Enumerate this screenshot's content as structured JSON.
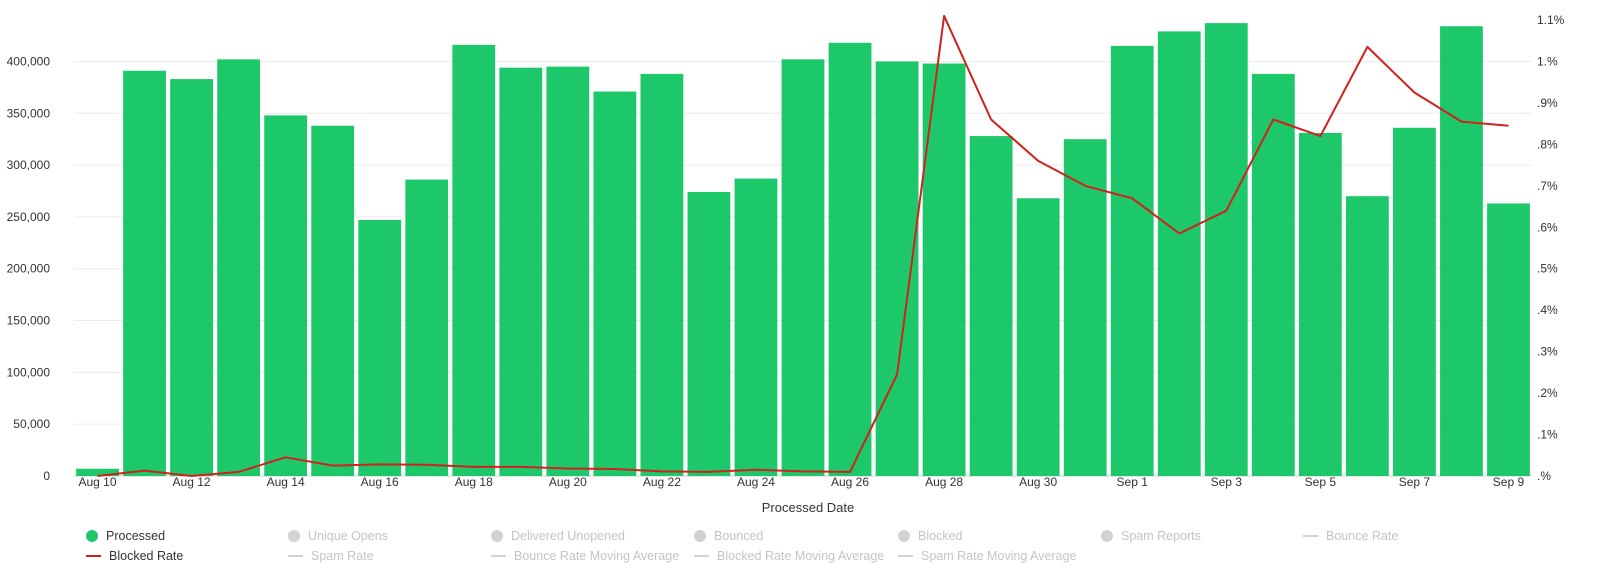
{
  "chart_data": {
    "type": "bar",
    "xlabel": "Processed Date",
    "categories": [
      "Aug 10",
      "Aug 11",
      "Aug 12",
      "Aug 13",
      "Aug 14",
      "Aug 15",
      "Aug 16",
      "Aug 17",
      "Aug 18",
      "Aug 19",
      "Aug 20",
      "Aug 21",
      "Aug 22",
      "Aug 23",
      "Aug 24",
      "Aug 25",
      "Aug 26",
      "Aug 27",
      "Aug 28",
      "Aug 29",
      "Aug 30",
      "Aug 31",
      "Sep 1",
      "Sep 2",
      "Sep 3",
      "Sep 4",
      "Sep 5",
      "Sep 6",
      "Sep 7",
      "Sep 8",
      "Sep 9"
    ],
    "x_tick_labels": [
      "Aug 10",
      "Aug 12",
      "Aug 14",
      "Aug 16",
      "Aug 18",
      "Aug 20",
      "Aug 22",
      "Aug 24",
      "Aug 26",
      "Aug 28",
      "Aug 30",
      "Sep 1",
      "Sep 3",
      "Sep 5",
      "Sep 7",
      "Sep 9"
    ],
    "y_left": {
      "ylim": [
        0,
        440000
      ],
      "ticks": [
        0,
        50000,
        100000,
        150000,
        200000,
        250000,
        300000,
        350000,
        400000
      ],
      "tick_labels": [
        "0",
        "50,000",
        "100,000",
        "150,000",
        "200,000",
        "250,000",
        "300,000",
        "350,000",
        "400,000"
      ]
    },
    "y_right": {
      "ylim": [
        0,
        1.1
      ],
      "ticks": [
        0,
        0.1,
        0.2,
        0.3,
        0.4,
        0.5,
        0.6,
        0.7,
        0.8,
        0.9,
        1.0,
        1.1
      ],
      "tick_labels": [
        ".%",
        ".1%",
        ".2%",
        ".3%",
        ".4%",
        ".5%",
        ".6%",
        ".7%",
        ".8%",
        ".9%",
        "1.%",
        "1.1%"
      ]
    },
    "grid": true,
    "legend_position": "bottom",
    "series": [
      {
        "name": "Processed",
        "type": "bar",
        "axis": "left",
        "color": "#1dc86a",
        "values": [
          7000,
          391000,
          383000,
          402000,
          348000,
          338000,
          247000,
          286000,
          416000,
          394000,
          395000,
          371000,
          388000,
          274000,
          287000,
          402000,
          418000,
          400000,
          398000,
          328000,
          268000,
          325000,
          415000,
          429000,
          437000,
          388000,
          331000,
          270000,
          336000,
          434000,
          263000
        ]
      },
      {
        "name": "Blocked Rate",
        "type": "line",
        "axis": "right",
        "color": "#d0211c",
        "values": [
          0.0,
          0.013,
          0.0,
          0.01,
          0.045,
          0.025,
          0.028,
          0.027,
          0.022,
          0.022,
          0.018,
          0.017,
          0.011,
          0.01,
          0.015,
          0.011,
          0.01,
          0.245,
          1.11,
          0.86,
          0.76,
          0.7,
          0.67,
          0.585,
          0.64,
          0.86,
          0.82,
          1.035,
          0.925,
          0.855,
          0.845
        ]
      }
    ]
  },
  "legend": {
    "items": [
      {
        "label": "Processed",
        "symbol": "dot",
        "color": "#1dc86a",
        "active": true
      },
      {
        "label": "Unique Opens",
        "symbol": "dot",
        "color": "#d2d2d2",
        "active": false
      },
      {
        "label": "Delivered Unopened",
        "symbol": "dot",
        "color": "#d2d2d2",
        "active": false
      },
      {
        "label": "Bounced",
        "symbol": "dot",
        "color": "#d2d2d2",
        "active": false
      },
      {
        "label": "Blocked",
        "symbol": "dot",
        "color": "#d2d2d2",
        "active": false
      },
      {
        "label": "Spam Reports",
        "symbol": "dot",
        "color": "#d2d2d2",
        "active": false
      },
      {
        "label": "Bounce Rate",
        "symbol": "line",
        "color": "#d2d2d2",
        "active": false
      },
      {
        "label": "Blocked Rate",
        "symbol": "line",
        "color": "#d0211c",
        "active": true
      },
      {
        "label": "Spam Rate",
        "symbol": "line",
        "color": "#d2d2d2",
        "active": false
      },
      {
        "label": "Bounce Rate Moving Average",
        "symbol": "line",
        "color": "#d2d2d2",
        "active": false
      },
      {
        "label": "Blocked Rate Moving Average",
        "symbol": "line",
        "color": "#d2d2d2",
        "active": false
      },
      {
        "label": "Spam Rate Moving Average",
        "symbol": "line",
        "color": "#d2d2d2",
        "active": false
      }
    ]
  }
}
